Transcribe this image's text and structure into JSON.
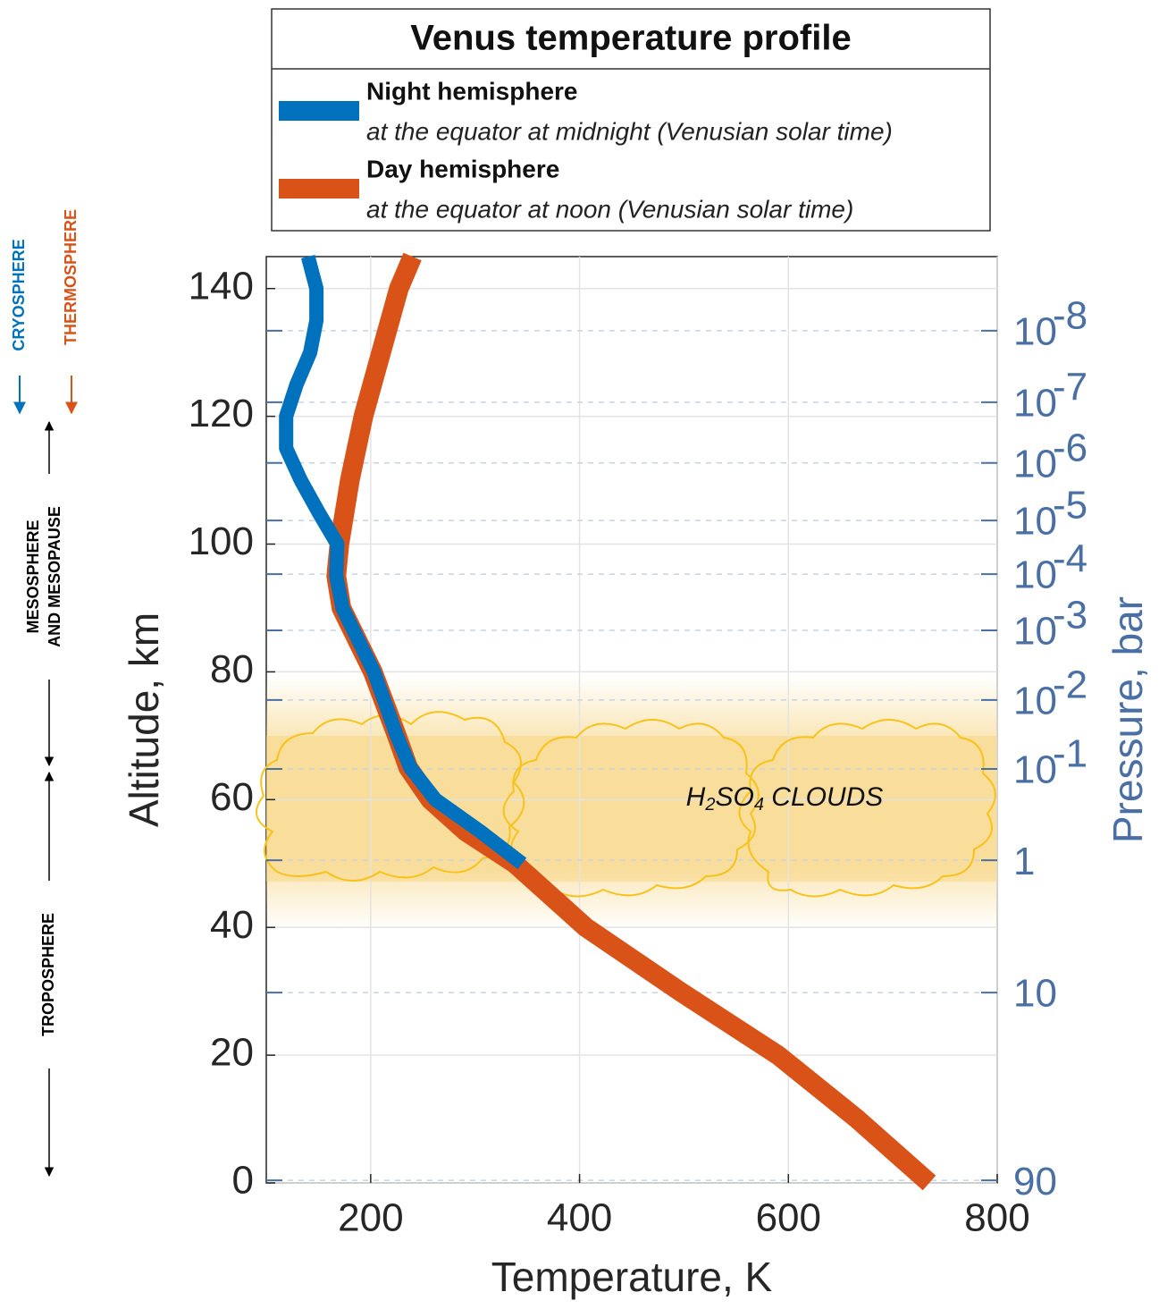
{
  "chart_data": {
    "type": "profile",
    "title": "Venus temperature profile",
    "x_label": "Temperature, K",
    "y_label": "Altitude, km",
    "y2_label": "Pressure, bar",
    "xlim": [
      100,
      800
    ],
    "xticks": [
      200,
      400,
      600,
      800
    ],
    "ylim": [
      0,
      145
    ],
    "yticks": [
      0,
      20,
      40,
      60,
      80,
      100,
      120,
      140
    ],
    "grid": true,
    "pressure_ticks": [
      {
        "value": 1e-08,
        "label": "10",
        "exponent": "-8",
        "altitude": 133.4
      },
      {
        "value": 1e-07,
        "label": "10",
        "exponent": "-7",
        "altitude": 122.2
      },
      {
        "value": 1e-06,
        "label": "10",
        "exponent": "-6",
        "altitude": 112.7
      },
      {
        "value": 1e-05,
        "label": "10",
        "exponent": "-5",
        "altitude": 103.7
      },
      {
        "value": 0.0001,
        "label": "10",
        "exponent": "-4",
        "altitude": 95.3
      },
      {
        "value": 0.001,
        "label": "10",
        "exponent": "-3",
        "altitude": 86.5
      },
      {
        "value": 0.01,
        "label": "10",
        "exponent": "-2",
        "altitude": 75.6
      },
      {
        "value": 0.1,
        "label": "10",
        "exponent": "-1",
        "altitude": 64.8
      },
      {
        "value": 1,
        "altitude": 50.5
      },
      {
        "value": 10,
        "altitude": 29.8
      },
      {
        "value": 90,
        "altitude": 0.4
      }
    ],
    "series": [
      {
        "name": "Night hemisphere",
        "description": "at the equator at midnight (Venusian solar time)",
        "color": "#0072bd",
        "altitude": [
          50,
          55,
          60,
          65,
          70,
          80,
          90,
          95,
          100,
          105,
          110,
          115,
          120,
          125,
          130,
          135,
          140,
          145
        ],
        "temperature": [
          345,
          305,
          262,
          238,
          225,
          203,
          173,
          167,
          168,
          150,
          133,
          119,
          119,
          129,
          142,
          148,
          148,
          140
        ]
      },
      {
        "name": "Day hemisphere",
        "description": "at the equator at noon (Venusian solar time)",
        "color": "#d95319",
        "altitude": [
          0,
          10,
          20,
          30,
          40,
          50,
          55,
          60,
          65,
          70,
          80,
          90,
          95,
          100,
          110,
          120,
          130,
          140,
          145
        ],
        "temperature": [
          735,
          666,
          590,
          496,
          406,
          338,
          291,
          257,
          236,
          225,
          202,
          172,
          167,
          170,
          180,
          193,
          210,
          227,
          240
        ]
      }
    ],
    "cloud_label": [
      "H",
      "2",
      "SO",
      "4",
      " CLOUDS"
    ],
    "regions": {
      "cryosphere": "CRYOSPHERE",
      "thermosphere": "THERMOSPHERE",
      "mesosphere": [
        "MESOSPHERE",
        "AND MESOPAUSE"
      ],
      "troposphere": "TROPOSPHERE"
    }
  }
}
